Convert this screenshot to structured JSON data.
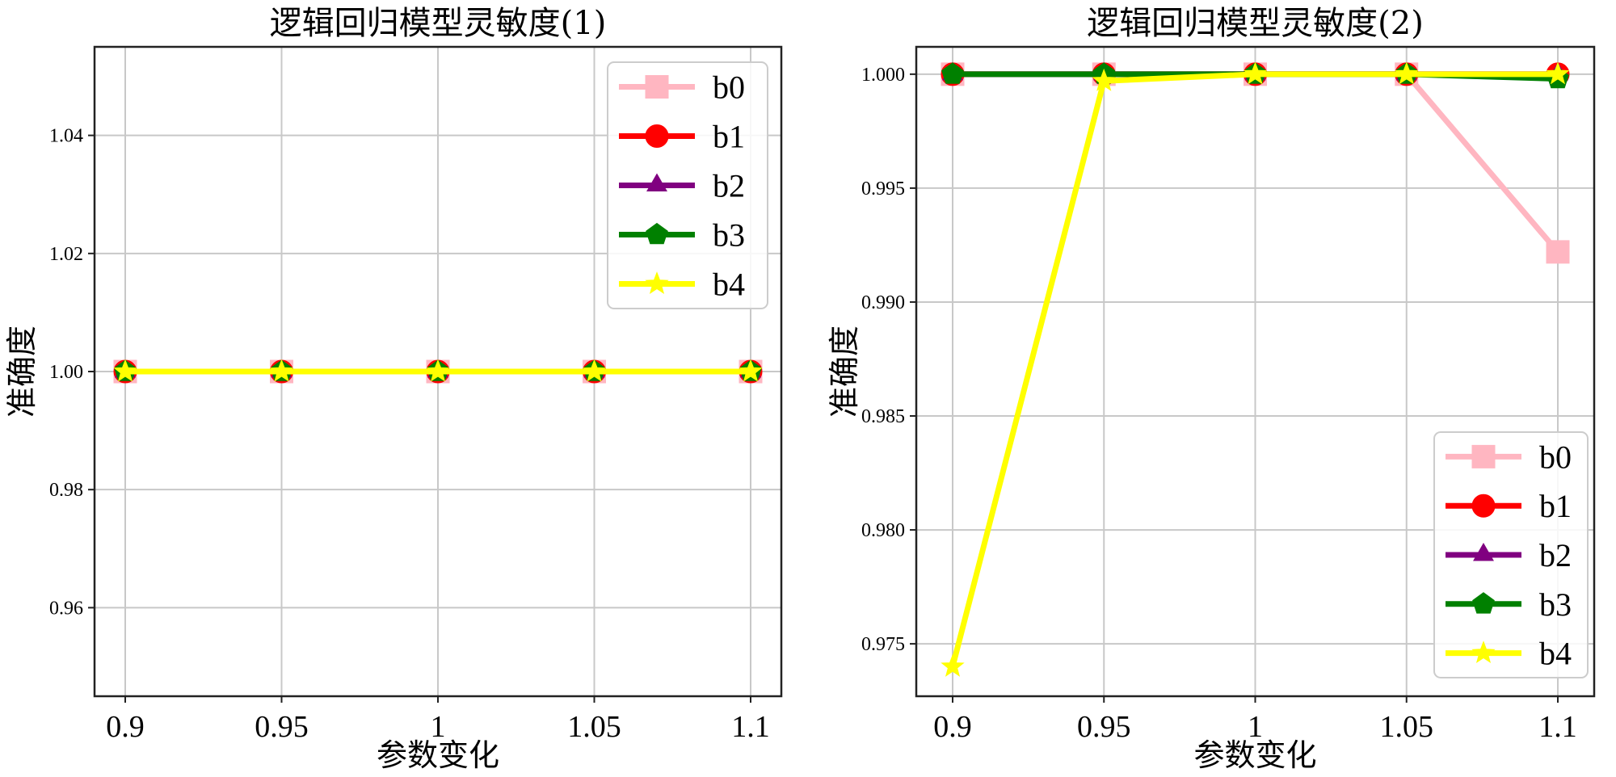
{
  "chart_data": [
    {
      "type": "line",
      "title": "逻辑回归模型灵敏度(1)",
      "xlabel": "参数变化",
      "ylabel": "准确度",
      "x": [
        0.9,
        0.95,
        1,
        1.05,
        1.1
      ],
      "xticklabels": [
        "0.9",
        "0.95",
        "1",
        "1.05",
        "1.1"
      ],
      "ylim": [
        0.945,
        1.055
      ],
      "yticks": [
        0.96,
        0.98,
        1.0,
        1.02,
        1.04
      ],
      "yticklabels": [
        "0.96",
        "0.98",
        "1.00",
        "1.02",
        "1.04"
      ],
      "grid": true,
      "legend": "top-right",
      "series": [
        {
          "name": "b0",
          "color": "#ffb6c1",
          "marker": "square",
          "values": [
            1.0,
            1.0,
            1.0,
            1.0,
            1.0
          ]
        },
        {
          "name": "b1",
          "color": "#ff0000",
          "marker": "circle",
          "values": [
            1.0,
            1.0,
            1.0,
            1.0,
            1.0
          ]
        },
        {
          "name": "b2",
          "color": "#800080",
          "marker": "triangle",
          "values": [
            1.0,
            1.0,
            1.0,
            1.0,
            1.0
          ]
        },
        {
          "name": "b3",
          "color": "#008000",
          "marker": "pentagon",
          "values": [
            1.0,
            1.0,
            1.0,
            1.0,
            1.0
          ]
        },
        {
          "name": "b4",
          "color": "#ffff00",
          "marker": "star",
          "values": [
            1.0,
            1.0,
            1.0,
            1.0,
            1.0
          ]
        }
      ]
    },
    {
      "type": "line",
      "title": "逻辑回归模型灵敏度(2)",
      "xlabel": "参数变化",
      "ylabel": "准确度",
      "x": [
        0.9,
        0.95,
        1,
        1.05,
        1.1
      ],
      "xticklabels": [
        "0.9",
        "0.95",
        "1",
        "1.05",
        "1.1"
      ],
      "ylim": [
        0.9727,
        1.0012
      ],
      "yticks": [
        0.975,
        0.98,
        0.985,
        0.99,
        0.995,
        1.0
      ],
      "yticklabels": [
        "0.975",
        "0.980",
        "0.985",
        "0.990",
        "0.995",
        "1.000"
      ],
      "grid": true,
      "legend": "bottom-right",
      "series": [
        {
          "name": "b0",
          "color": "#ffb6c1",
          "marker": "square",
          "values": [
            1.0,
            1.0,
            1.0,
            1.0,
            0.9922
          ]
        },
        {
          "name": "b1",
          "color": "#ff0000",
          "marker": "circle",
          "values": [
            1.0,
            1.0,
            1.0,
            1.0,
            1.0
          ]
        },
        {
          "name": "b2",
          "color": "#800080",
          "marker": "triangle",
          "values": [
            1.0,
            1.0,
            1.0,
            1.0,
            1.0
          ]
        },
        {
          "name": "b3",
          "color": "#008000",
          "marker": "pentagon",
          "values": [
            1.0,
            1.0,
            1.0,
            1.0,
            0.9998
          ]
        },
        {
          "name": "b4",
          "color": "#ffff00",
          "marker": "star",
          "values": [
            0.974,
            0.9997,
            1.0,
            1.0,
            1.0
          ]
        }
      ]
    }
  ]
}
